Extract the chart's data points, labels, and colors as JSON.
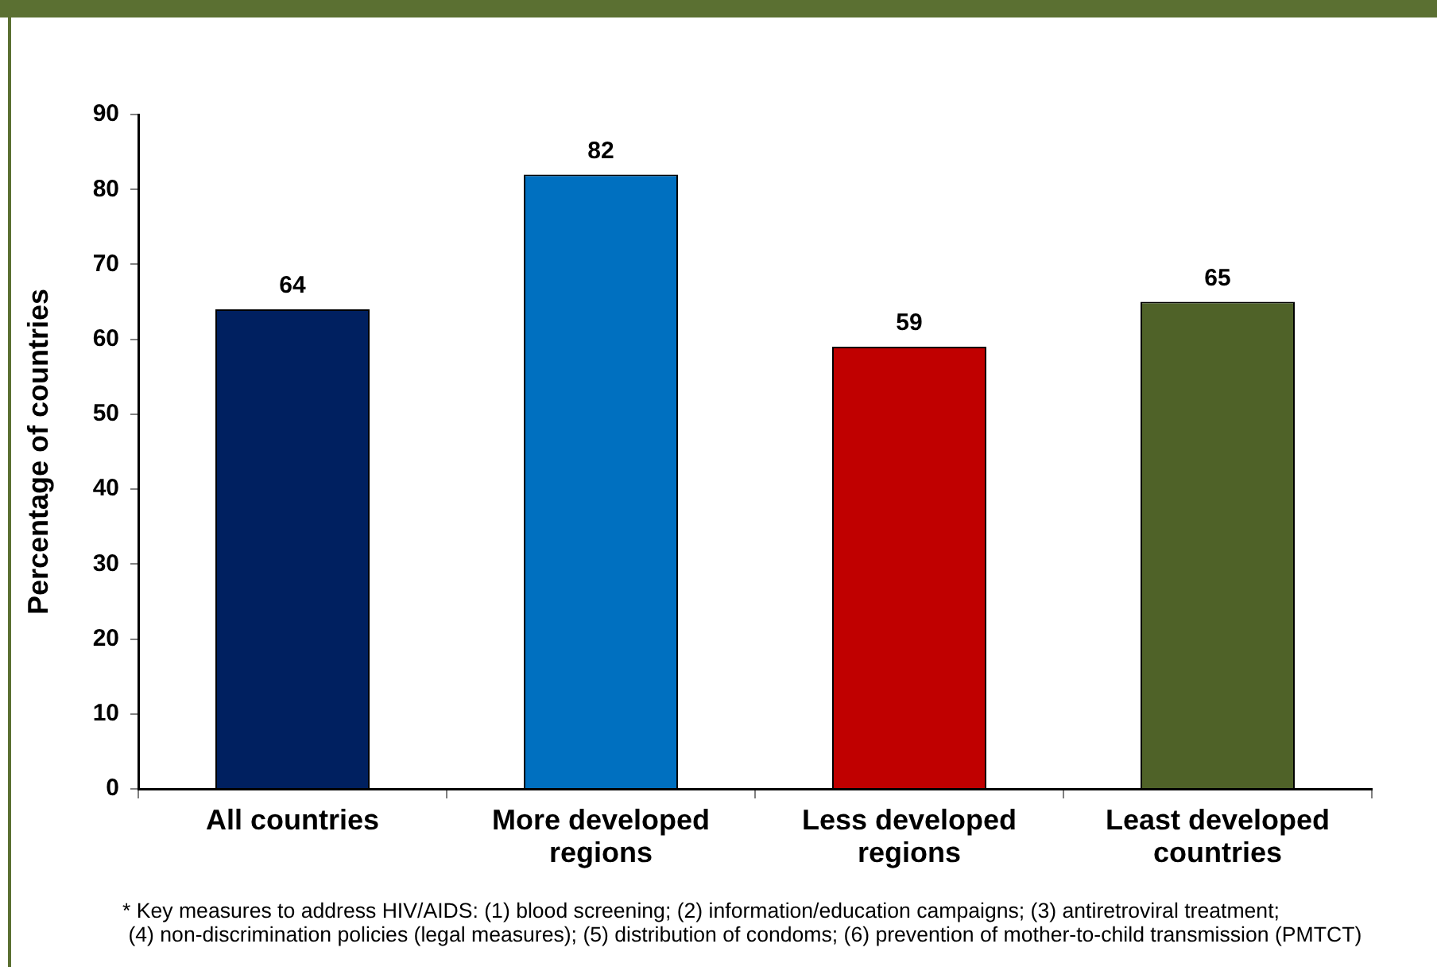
{
  "chart_data": {
    "type": "bar",
    "categories": [
      "All countries",
      "More developed regions",
      "Less developed regions",
      "Least developed countries"
    ],
    "values": [
      64,
      82,
      59,
      65
    ],
    "colors": [
      "#002060",
      "#0070c0",
      "#c00000",
      "#4f6228"
    ],
    "ylabel": "Percentage of countries",
    "ylim": [
      0,
      90
    ],
    "yticks": [
      0,
      10,
      20,
      30,
      40,
      50,
      60,
      70,
      80,
      90
    ],
    "data_labels": true,
    "annotations": [
      "* Key measures to address HIV/AIDS: (1) blood screening; (2) information/education campaigns; (3) antiretroviral treatment;\n (4) non-discrimination policies (legal measures); (5) distribution of condoms; (6) prevention of mother-to-child transmission (PMTCT)"
    ]
  }
}
